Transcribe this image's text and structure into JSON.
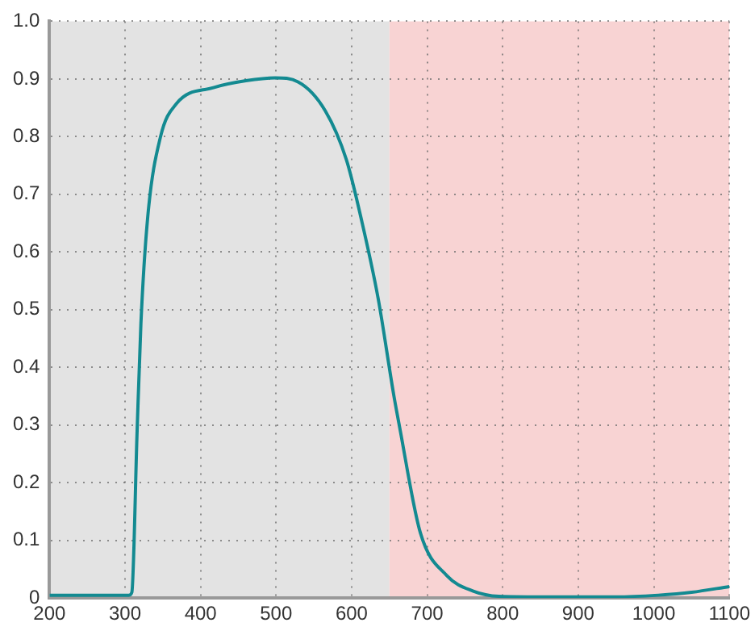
{
  "chart_data": {
    "type": "line",
    "series": [
      {
        "color": "#138a91",
        "x": [
          200,
          250,
          300,
          305,
          309,
          316,
          321,
          330,
          347,
          368,
          417,
          460,
          499,
          529,
          565,
          593,
          614,
          635,
          656,
          663,
          691,
          726,
          761,
          795,
          850,
          900,
          950,
          1006,
          1050,
          1100
        ],
        "values": [
          0.005,
          0.005,
          0.005,
          0.005,
          0.01,
          0.29,
          0.475,
          0.66,
          0.8,
          0.857,
          0.885,
          0.897,
          0.902,
          0.895,
          0.845,
          0.76,
          0.65,
          0.52,
          0.35,
          0.3,
          0.113,
          0.039,
          0.012,
          0.003,
          0.002,
          0.002,
          0.002,
          0.005,
          0.01,
          0.02
        ]
      }
    ],
    "xlim": [
      200,
      1100
    ],
    "xticks": [
      200,
      300,
      400,
      500,
      600,
      700,
      800,
      900,
      1000,
      1100
    ],
    "ylim": [
      0,
      1
    ],
    "yticks": [
      0,
      0.1,
      0.2,
      0.3,
      0.4,
      0.5,
      0.6,
      0.7,
      0.8,
      0.9,
      {
        "value": 1,
        "label": "1.0"
      }
    ],
    "grid": true,
    "marker": "none",
    "line_style": "solid",
    "bands": [
      {
        "axis": "x",
        "from": 200,
        "to": 650,
        "color": "#e3e3e3"
      },
      {
        "axis": "x",
        "from": 650,
        "to": 1100,
        "color": "#f8d3d3"
      }
    ]
  }
}
